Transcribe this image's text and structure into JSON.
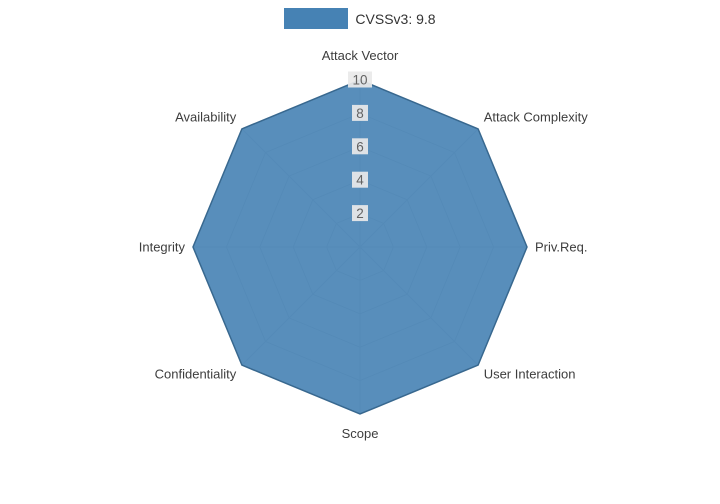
{
  "legend": {
    "label": "CVSSv3: 9.8",
    "swatch_color": "#4682B4"
  },
  "chart_data": {
    "type": "radar",
    "title": "",
    "categories": [
      "Attack Vector",
      "Attack Complexity",
      "Priv.Req.",
      "User Interaction",
      "Scope",
      "Confidentiality",
      "Integrity",
      "Availability"
    ],
    "series": [
      {
        "name": "CVSSv3: 9.8",
        "values": [
          10,
          10,
          10,
          10,
          10,
          10,
          10,
          10
        ]
      }
    ],
    "ticks": [
      2,
      4,
      6,
      8,
      10
    ],
    "tick_labels": [
      "2",
      "4",
      "6",
      "8",
      "10"
    ],
    "rmax": 10,
    "grid": true,
    "legend_position": "top-center",
    "fill_color": "#4682B4",
    "fill_opacity": 0.9,
    "stroke_color": "#38688F",
    "grid_color": "#d6d6d6",
    "axis_label_color": "#3d3d3d",
    "tick_label_color": "#636363",
    "tick_bg_color": "#e9e9e9"
  }
}
